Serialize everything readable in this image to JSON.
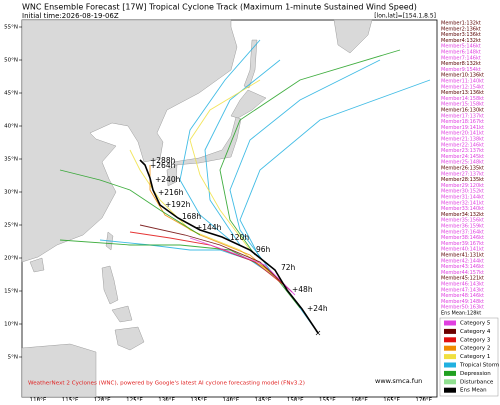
{
  "header": {
    "title": "WNC Ensemble Forecast [17W] Tropical Cyclone Track (Maximum 1-minute Sustained Wind Speed)",
    "subtitle": "Initial time:2026-08-19-06Z",
    "position": "[lon,lat]=[154.1,8.5]"
  },
  "map": {
    "lon_ticks": [
      {
        "value": 110,
        "label": "110°E"
      },
      {
        "value": 115,
        "label": "115°E"
      },
      {
        "value": 120,
        "label": "120°E"
      },
      {
        "value": 125,
        "label": "125°E"
      },
      {
        "value": 130,
        "label": "130°E"
      },
      {
        "value": 135,
        "label": "135°E"
      },
      {
        "value": 140,
        "label": "140°E"
      },
      {
        "value": 145,
        "label": "145°E"
      },
      {
        "value": 150,
        "label": "150°E"
      },
      {
        "value": 155,
        "label": "155°E"
      },
      {
        "value": 160,
        "label": "160°E"
      },
      {
        "value": 165,
        "label": "165°E"
      },
      {
        "value": 170,
        "label": "170°E"
      }
    ],
    "lat_ticks": [
      {
        "value": 5,
        "label": "5°N"
      },
      {
        "value": 10,
        "label": "10°N"
      },
      {
        "value": 15,
        "label": "15°N"
      },
      {
        "value": 20,
        "label": "20°N"
      },
      {
        "value": 25,
        "label": "25°N"
      },
      {
        "value": 30,
        "label": "30°N"
      },
      {
        "value": 35,
        "label": "35°N"
      },
      {
        "value": 40,
        "label": "40°N"
      },
      {
        "value": 45,
        "label": "45°N"
      },
      {
        "value": 50,
        "label": "50°N"
      },
      {
        "value": 55,
        "label": "55°N"
      }
    ],
    "time_labels": [
      "+24h",
      "+48h",
      "72h",
      "96h",
      "120h",
      "+144h",
      "168h",
      "+192h",
      "+216h",
      "+240h",
      "+264h",
      "+288h"
    ]
  },
  "members": [
    {
      "label": "Member1:132kt",
      "color": "#5a0000"
    },
    {
      "label": "Member2:136kt",
      "color": "#5a0000"
    },
    {
      "label": "Member3:136kt",
      "color": "#5a0000"
    },
    {
      "label": "Member4:132kt",
      "color": "#5a0000"
    },
    {
      "label": "Member5:146kt",
      "color": "#e040e0"
    },
    {
      "label": "Member6:148kt",
      "color": "#e040e0"
    },
    {
      "label": "Member7:146kt",
      "color": "#e040e0"
    },
    {
      "label": "Member8:132kt",
      "color": "#5a0000"
    },
    {
      "label": "Member9:154kt",
      "color": "#e040e0"
    },
    {
      "label": "Member10:136kt",
      "color": "#5a0000"
    },
    {
      "label": "Member11:140kt",
      "color": "#e040e0"
    },
    {
      "label": "Member12:154kt",
      "color": "#e040e0"
    },
    {
      "label": "Member13:136kt",
      "color": "#5a0000"
    },
    {
      "label": "Member14:158kt",
      "color": "#e040e0"
    },
    {
      "label": "Member15:158kt",
      "color": "#e040e0"
    },
    {
      "label": "Member16:130kt",
      "color": "#5a0000"
    },
    {
      "label": "Member17:137kt",
      "color": "#e040e0"
    },
    {
      "label": "Member18:167kt",
      "color": "#e040e0"
    },
    {
      "label": "Member19:141kt",
      "color": "#e040e0"
    },
    {
      "label": "Member20:141kt",
      "color": "#e040e0"
    },
    {
      "label": "Member21:138kt",
      "color": "#e040e0"
    },
    {
      "label": "Member22:146kt",
      "color": "#e040e0"
    },
    {
      "label": "Member23:137kt",
      "color": "#e040e0"
    },
    {
      "label": "Member24:145kt",
      "color": "#e040e0"
    },
    {
      "label": "Member25:148kt",
      "color": "#e040e0"
    },
    {
      "label": "Member26:135kt",
      "color": "#5a0000"
    },
    {
      "label": "Member27:137kt",
      "color": "#e040e0"
    },
    {
      "label": "Member28:135kt",
      "color": "#5a0000"
    },
    {
      "label": "Member29:120kt",
      "color": "#e040e0"
    },
    {
      "label": "Member30:152kt",
      "color": "#e040e0"
    },
    {
      "label": "Member31:144kt",
      "color": "#e040e0"
    },
    {
      "label": "Member32:141kt",
      "color": "#e040e0"
    },
    {
      "label": "Member33:140kt",
      "color": "#e040e0"
    },
    {
      "label": "Member34:132kt",
      "color": "#5a0000"
    },
    {
      "label": "Member35:156kt",
      "color": "#e040e0"
    },
    {
      "label": "Member36:159kt",
      "color": "#e040e0"
    },
    {
      "label": "Member37:164kt",
      "color": "#e040e0"
    },
    {
      "label": "Member38:146kt",
      "color": "#e040e0"
    },
    {
      "label": "Member39:167kt",
      "color": "#e040e0"
    },
    {
      "label": "Member40:141kt",
      "color": "#e040e0"
    },
    {
      "label": "Member41:131kt",
      "color": "#5a0000"
    },
    {
      "label": "Member42:144kt",
      "color": "#e040e0"
    },
    {
      "label": "Member43:146kt",
      "color": "#e040e0"
    },
    {
      "label": "Member44:157kt",
      "color": "#e040e0"
    },
    {
      "label": "Member45:121kt",
      "color": "#5a0000"
    },
    {
      "label": "Member46:143kt",
      "color": "#e040e0"
    },
    {
      "label": "Member47:143kt",
      "color": "#e040e0"
    },
    {
      "label": "Member48:146kt",
      "color": "#e040e0"
    },
    {
      "label": "Member49:148kt",
      "color": "#e040e0"
    },
    {
      "label": "Member50:163kt",
      "color": "#e040e0"
    },
    {
      "label": "Ens Mean:128kt",
      "color": "#000000"
    }
  ],
  "legend": [
    {
      "label": "Category 5",
      "color": "#e040e0"
    },
    {
      "label": "Category 4",
      "color": "#6b0000"
    },
    {
      "label": "Category 3",
      "color": "#e01010"
    },
    {
      "label": "Category 2",
      "color": "#f08c00"
    },
    {
      "label": "Category 1",
      "color": "#f0e040"
    },
    {
      "label": "Tropical Storm",
      "color": "#20b0e0"
    },
    {
      "label": "Depression",
      "color": "#20a020"
    },
    {
      "label": "Disturbance",
      "color": "#90e090"
    },
    {
      "label": "Ens Mean",
      "color": "#000000"
    }
  ],
  "footer": {
    "credit": "WeatherNext 2 Cyclones (WNC), powered by Google's latest AI cyclone forecasting model (FNv3.2)",
    "website": "www.smca.fun"
  }
}
